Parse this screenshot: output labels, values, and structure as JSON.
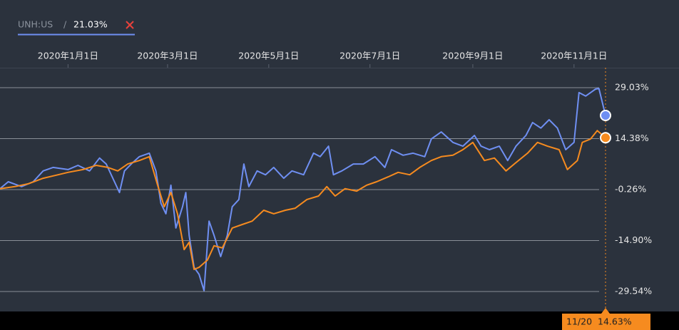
{
  "chart_data": {
    "type": "line",
    "legend_separator": "/",
    "legend_value": {
      "value": 21.03,
      "label": "21.03%"
    },
    "xlim": [
      "2019-11-21",
      "2020-11-20"
    ],
    "xticks": [
      {
        "value": "2020-01-01",
        "label": "2020年1月1日"
      },
      {
        "value": "2020-03-01",
        "label": "2020年3月1日"
      },
      {
        "value": "2020-05-01",
        "label": "2020年5月1日"
      },
      {
        "value": "2020-07-01",
        "label": "2020年7月1日"
      },
      {
        "value": "2020-09-01",
        "label": "2020年9月1日"
      },
      {
        "value": "2020-11-01",
        "label": "2020年11月1日"
      }
    ],
    "ylim": [
      -35.27,
      34.75
    ],
    "yticks": [
      {
        "value": 29.03,
        "label": "29.03%"
      },
      {
        "value": 14.38,
        "label": "14.38%"
      },
      {
        "value": -0.26,
        "label": "-0.26%"
      },
      {
        "value": -14.9,
        "label": "-14.90%"
      },
      {
        "value": -29.54,
        "label": "-29.54%"
      }
    ],
    "grid": true,
    "crosshair": {
      "x": "2020-11-20",
      "x_label": "11/20",
      "value": 14.63,
      "label": "14.63%"
    },
    "series": [
      {
        "name": "UNH:US",
        "color": "#6f8ff2",
        "x": [
          "2019-11-21",
          "2019-11-26",
          "2019-12-04",
          "2019-12-11",
          "2019-12-17",
          "2019-12-23",
          "2020-01-01",
          "2020-01-07",
          "2020-01-14",
          "2020-01-20",
          "2020-01-24",
          "2020-01-29",
          "2020-02-01",
          "2020-02-04",
          "2020-02-09",
          "2020-02-13",
          "2020-02-19",
          "2020-02-23",
          "2020-02-26",
          "2020-02-29",
          "2020-03-03",
          "2020-03-06",
          "2020-03-10",
          "2020-03-12",
          "2020-03-14",
          "2020-03-17",
          "2020-03-20",
          "2020-03-23",
          "2020-03-26",
          "2020-03-29",
          "2020-04-02",
          "2020-04-06",
          "2020-04-09",
          "2020-04-13",
          "2020-04-16",
          "2020-04-19",
          "2020-04-24",
          "2020-04-29",
          "2020-05-04",
          "2020-05-10",
          "2020-05-15",
          "2020-05-22",
          "2020-05-28",
          "2020-06-01",
          "2020-06-06",
          "2020-06-09",
          "2020-06-14",
          "2020-06-21",
          "2020-06-27",
          "2020-07-04",
          "2020-07-10",
          "2020-07-14",
          "2020-07-21",
          "2020-07-27",
          "2020-08-03",
          "2020-08-07",
          "2020-08-13",
          "2020-08-20",
          "2020-08-26",
          "2020-09-02",
          "2020-09-06",
          "2020-09-11",
          "2020-09-17",
          "2020-09-22",
          "2020-09-27",
          "2020-10-03",
          "2020-10-07",
          "2020-10-12",
          "2020-10-17",
          "2020-10-22",
          "2020-10-27",
          "2020-11-01",
          "2020-11-04",
          "2020-11-08",
          "2020-11-14",
          "2020-11-16",
          "2020-11-20"
        ],
        "values": [
          0,
          2.0,
          0.6,
          2.0,
          5.1,
          6.1,
          5.5,
          6.7,
          5.1,
          8.8,
          7.1,
          2.0,
          -1.1,
          5.1,
          7.5,
          9.2,
          10.2,
          5.1,
          -4.2,
          -7.2,
          1.0,
          -11.3,
          -5.2,
          -1.1,
          -13.4,
          -22.6,
          -24.6,
          -29.3,
          -9.3,
          -13.4,
          -19.5,
          -13.4,
          -5.2,
          -3.1,
          7.1,
          0.6,
          5.1,
          4.0,
          6.1,
          3.0,
          5.1,
          4.0,
          10.2,
          9.2,
          12.2,
          4.0,
          5.1,
          7.1,
          7.1,
          9.2,
          6.1,
          11.2,
          9.6,
          10.2,
          9.2,
          14.3,
          16.3,
          13.3,
          12.2,
          15.3,
          12.2,
          11.2,
          12.2,
          8.1,
          12.2,
          15.3,
          19.0,
          17.4,
          19.8,
          17.4,
          11.2,
          13.3,
          27.6,
          26.6,
          28.6,
          28.8,
          21.03
        ]
      },
      {
        "color": "#f68b1f",
        "x": [
          "2019-11-21",
          "2019-11-30",
          "2019-12-08",
          "2019-12-17",
          "2019-12-26",
          "2020-01-01",
          "2020-01-10",
          "2020-01-18",
          "2020-01-25",
          "2020-01-31",
          "2020-02-06",
          "2020-02-13",
          "2020-02-19",
          "2020-02-24",
          "2020-02-28",
          "2020-03-03",
          "2020-03-07",
          "2020-03-11",
          "2020-03-14",
          "2020-03-17",
          "2020-03-20",
          "2020-03-25",
          "2020-03-29",
          "2020-04-03",
          "2020-04-09",
          "2020-04-15",
          "2020-04-21",
          "2020-04-28",
          "2020-05-04",
          "2020-05-11",
          "2020-05-17",
          "2020-05-24",
          "2020-05-31",
          "2020-06-05",
          "2020-06-10",
          "2020-06-16",
          "2020-06-23",
          "2020-06-29",
          "2020-07-05",
          "2020-07-12",
          "2020-07-18",
          "2020-07-25",
          "2020-07-31",
          "2020-08-07",
          "2020-08-13",
          "2020-08-20",
          "2020-08-26",
          "2020-09-01",
          "2020-09-08",
          "2020-09-14",
          "2020-09-21",
          "2020-09-27",
          "2020-10-04",
          "2020-10-10",
          "2020-10-16",
          "2020-10-23",
          "2020-10-28",
          "2020-11-03",
          "2020-11-06",
          "2020-11-11",
          "2020-11-15",
          "2020-11-20"
        ],
        "values": [
          0,
          0.6,
          1.4,
          3.0,
          4.0,
          4.7,
          5.5,
          6.7,
          6.1,
          5.1,
          7.1,
          8.1,
          9.2,
          1.0,
          -5.2,
          -1.1,
          -7.2,
          -17.5,
          -15.4,
          -23.2,
          -22.6,
          -20.5,
          -16.4,
          -17.0,
          -11.3,
          -10.3,
          -9.3,
          -6.2,
          -7.2,
          -6.2,
          -5.6,
          -3.1,
          -2.1,
          0.6,
          -2.1,
          0,
          -0.7,
          1.0,
          2.0,
          3.4,
          4.7,
          4.0,
          6.1,
          8.1,
          9.2,
          9.6,
          11.2,
          13.3,
          8.1,
          8.8,
          5.1,
          7.5,
          10.2,
          13.3,
          12.2,
          11.2,
          5.5,
          8.1,
          13.3,
          14.3,
          16.7,
          14.63
        ]
      }
    ]
  }
}
